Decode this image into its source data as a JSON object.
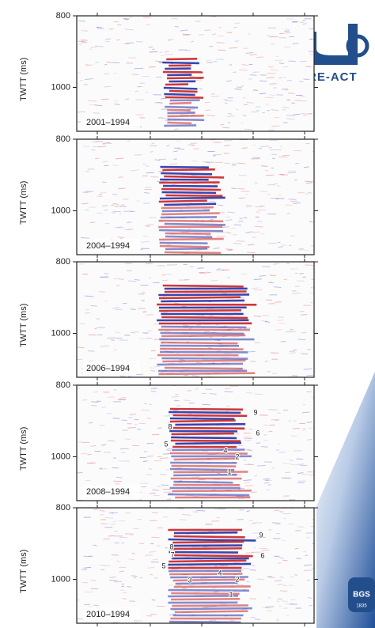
{
  "figure": {
    "panels": [
      {
        "label": "2001–1994",
        "y_axis_label": "TWTT (ms)",
        "yticks": [
          800,
          1000
        ],
        "annotations": []
      },
      {
        "label": "2004–1994",
        "y_axis_label": "TWTT (ms)",
        "yticks": [
          800,
          1000
        ],
        "annotations": []
      },
      {
        "label": "2006–1994",
        "y_axis_label": "TWTT (ms)",
        "yticks": [
          800,
          1000
        ],
        "annotations": []
      },
      {
        "label": "2008–1994",
        "y_axis_label": "TWTT (ms)",
        "yticks": [
          800,
          1000
        ],
        "annotations": [
          "9",
          "8",
          "6",
          "5",
          "4",
          "2",
          "1"
        ]
      },
      {
        "label": "2010–1994",
        "y_axis_label": "TWTT (ms)",
        "yticks": [
          800,
          1000
        ],
        "annotations": [
          "9",
          "8",
          "7",
          "6",
          "5",
          "4",
          "3",
          "2",
          "1"
        ]
      }
    ],
    "logo": {
      "text": "PRE-ACT"
    },
    "badge": {
      "text": "BGS",
      "year": "1835"
    }
  }
}
